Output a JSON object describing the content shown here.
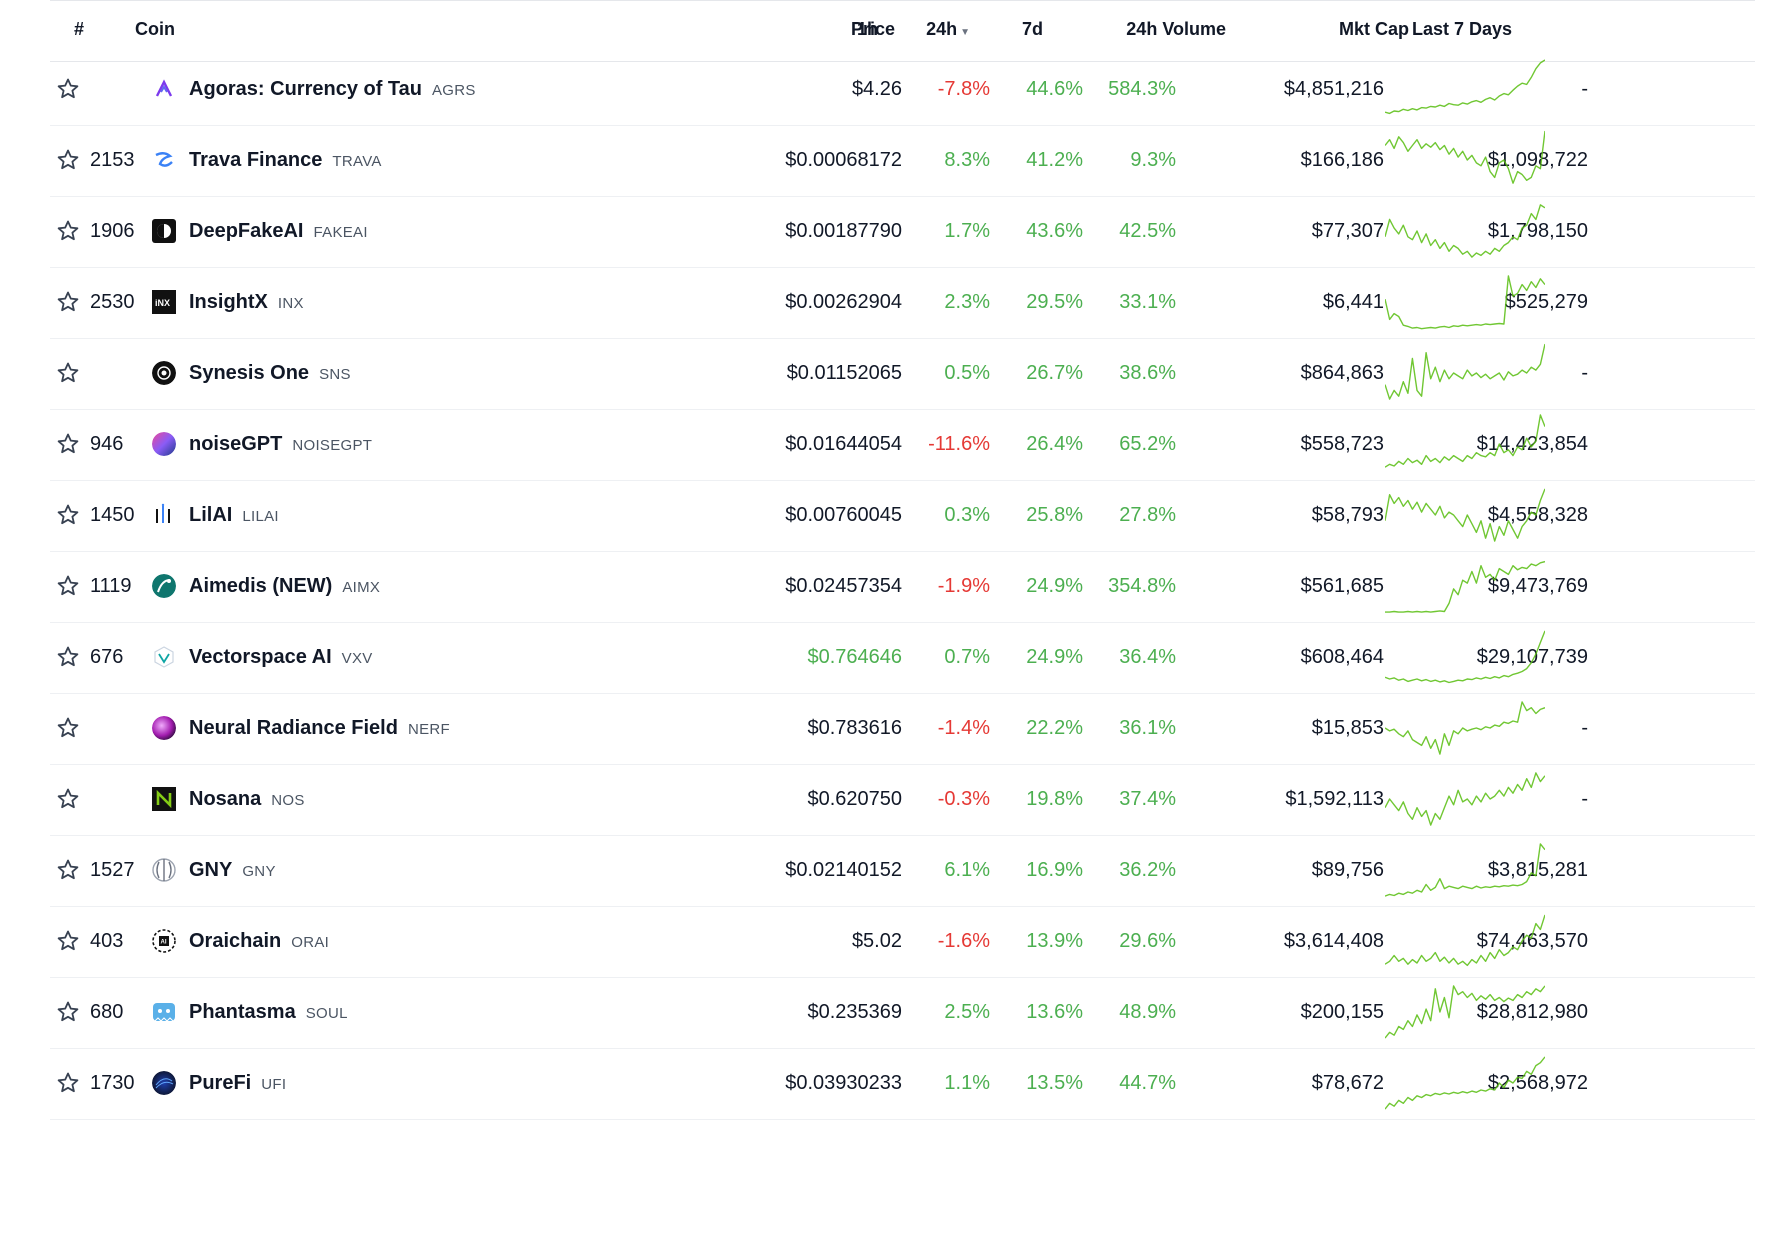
{
  "colors": {
    "positive": "#4caf50",
    "negative": "#e53935",
    "text": "#111827",
    "muted": "#4b5563"
  },
  "header": {
    "rank": "#",
    "coin": "Coin",
    "price": "Price",
    "h1": "1h",
    "h24": "24h",
    "d7": "7d",
    "volume": "24h Volume",
    "mcap": "Mkt Cap",
    "spark": "Last 7 Days"
  },
  "rows": [
    {
      "rank": "",
      "name": "Agoras: Currency of Tau",
      "symbol": "AGRS",
      "price": "$4.26",
      "price_color": "dark",
      "h1": "-7.8%",
      "h24": "44.6%",
      "d7": "584.3%",
      "volume": "$4,851,216",
      "mcap": "-",
      "logo": "agoras-logo",
      "spark": [
        0.1,
        0.08,
        0.12,
        0.11,
        0.15,
        0.13,
        0.16,
        0.14,
        0.18,
        0.17,
        0.2,
        0.19,
        0.22,
        0.2,
        0.25,
        0.23,
        0.22,
        0.26,
        0.24,
        0.28,
        0.3,
        0.27,
        0.32,
        0.35,
        0.31,
        0.38,
        0.42,
        0.4,
        0.48,
        0.55,
        0.6,
        0.58,
        0.7,
        0.85,
        0.95,
        1.0
      ]
    },
    {
      "rank": "2153",
      "name": "Trava Finance",
      "symbol": "TRAVA",
      "price": "$0.00068172",
      "price_color": "dark",
      "h1": "8.3%",
      "h24": "41.2%",
      "d7": "9.3%",
      "volume": "$166,186",
      "mcap": "$1,098,722",
      "logo": "trava-logo",
      "spark": [
        0.75,
        0.85,
        0.7,
        0.9,
        0.8,
        0.65,
        0.75,
        0.85,
        0.7,
        0.78,
        0.72,
        0.8,
        0.68,
        0.75,
        0.6,
        0.7,
        0.55,
        0.65,
        0.5,
        0.58,
        0.45,
        0.4,
        0.55,
        0.3,
        0.2,
        0.45,
        0.5,
        0.35,
        0.1,
        0.3,
        0.25,
        0.15,
        0.2,
        0.4,
        0.35,
        1.0
      ]
    },
    {
      "rank": "1906",
      "name": "DeepFakeAI",
      "symbol": "FAKEAI",
      "price": "$0.00187790",
      "price_color": "dark",
      "h1": "1.7%",
      "h24": "43.6%",
      "d7": "42.5%",
      "volume": "$77,307",
      "mcap": "$1,798,150",
      "logo": "deepfake-logo",
      "spark": [
        0.4,
        0.7,
        0.55,
        0.45,
        0.6,
        0.4,
        0.35,
        0.5,
        0.3,
        0.45,
        0.25,
        0.35,
        0.2,
        0.3,
        0.15,
        0.25,
        0.2,
        0.1,
        0.15,
        0.05,
        0.12,
        0.08,
        0.15,
        0.1,
        0.2,
        0.15,
        0.25,
        0.3,
        0.4,
        0.35,
        0.55,
        0.6,
        0.8,
        0.7,
        0.95,
        0.9
      ]
    },
    {
      "rank": "2530",
      "name": "InsightX",
      "symbol": "INX",
      "price": "$0.00262904",
      "price_color": "dark",
      "h1": "2.3%",
      "h24": "29.5%",
      "d7": "33.1%",
      "volume": "$6,441",
      "mcap": "$525,279",
      "logo": "insightx-logo",
      "spark": [
        0.55,
        0.2,
        0.3,
        0.25,
        0.1,
        0.08,
        0.05,
        0.06,
        0.04,
        0.05,
        0.06,
        0.05,
        0.07,
        0.08,
        0.06,
        0.09,
        0.08,
        0.1,
        0.09,
        0.1,
        0.11,
        0.1,
        0.12,
        0.11,
        0.12,
        0.13,
        0.12,
        0.95,
        0.6,
        0.65,
        0.8,
        0.7,
        0.85,
        0.75,
        0.9,
        0.8
      ]
    },
    {
      "rank": "",
      "name": "Synesis One",
      "symbol": "SNS",
      "price": "$0.01152065",
      "price_color": "dark",
      "h1": "0.5%",
      "h24": "26.7%",
      "d7": "38.6%",
      "volume": "$864,863",
      "mcap": "-",
      "logo": "synesis-logo",
      "spark": [
        0.3,
        0.05,
        0.2,
        0.1,
        0.35,
        0.15,
        0.75,
        0.2,
        0.1,
        0.85,
        0.4,
        0.6,
        0.35,
        0.55,
        0.4,
        0.5,
        0.45,
        0.4,
        0.55,
        0.45,
        0.5,
        0.42,
        0.48,
        0.4,
        0.45,
        0.5,
        0.38,
        0.52,
        0.45,
        0.48,
        0.55,
        0.5,
        0.6,
        0.55,
        0.65,
        1.0
      ]
    },
    {
      "rank": "946",
      "name": "noiseGPT",
      "symbol": "NOISEGPT",
      "price": "$0.01644054",
      "price_color": "dark",
      "h1": "-11.6%",
      "h24": "26.4%",
      "d7": "65.2%",
      "volume": "$558,723",
      "mcap": "$14,423,854",
      "logo": "noisegpt-logo",
      "spark": [
        0.1,
        0.15,
        0.12,
        0.2,
        0.15,
        0.25,
        0.18,
        0.22,
        0.15,
        0.3,
        0.2,
        0.25,
        0.18,
        0.28,
        0.22,
        0.3,
        0.25,
        0.2,
        0.3,
        0.25,
        0.35,
        0.3,
        0.28,
        0.35,
        0.3,
        0.5,
        0.35,
        0.4,
        0.3,
        0.45,
        0.4,
        0.6,
        0.45,
        0.55,
        1.0,
        0.8
      ]
    },
    {
      "rank": "1450",
      "name": "LilAI",
      "symbol": "LILAI",
      "price": "$0.00760045",
      "price_color": "dark",
      "h1": "0.3%",
      "h24": "25.8%",
      "d7": "27.8%",
      "volume": "$58,793",
      "mcap": "$4,558,328",
      "logo": "lilai-logo",
      "spark": [
        0.4,
        0.85,
        0.7,
        0.8,
        0.65,
        0.75,
        0.6,
        0.72,
        0.55,
        0.7,
        0.6,
        0.5,
        0.65,
        0.45,
        0.55,
        0.5,
        0.4,
        0.3,
        0.5,
        0.35,
        0.2,
        0.4,
        0.1,
        0.35,
        0.05,
        0.3,
        0.15,
        0.4,
        0.25,
        0.1,
        0.3,
        0.4,
        0.55,
        0.5,
        0.75,
        0.95
      ]
    },
    {
      "rank": "1119",
      "name": "Aimedis (NEW)",
      "symbol": "AIMX",
      "price": "$0.02457354",
      "price_color": "dark",
      "h1": "-1.9%",
      "h24": "24.9%",
      "d7": "354.8%",
      "volume": "$561,685",
      "mcap": "$9,473,769",
      "logo": "aimedis-logo",
      "spark": [
        0.05,
        0.05,
        0.06,
        0.05,
        0.05,
        0.06,
        0.05,
        0.06,
        0.05,
        0.06,
        0.05,
        0.06,
        0.07,
        0.06,
        0.2,
        0.45,
        0.35,
        0.6,
        0.55,
        0.75,
        0.55,
        0.85,
        0.65,
        0.7,
        0.6,
        0.8,
        0.75,
        0.7,
        0.85,
        0.78,
        0.82,
        0.8,
        0.88,
        0.85,
        0.9,
        0.92
      ]
    },
    {
      "rank": "676",
      "name": "Vectorspace AI",
      "symbol": "VXV",
      "price": "$0.764646",
      "price_color": "pos",
      "h1": "0.7%",
      "h24": "24.9%",
      "d7": "36.4%",
      "volume": "$608,464",
      "mcap": "$29,107,739",
      "logo": "vectorspace-logo",
      "spark": [
        0.15,
        0.12,
        0.14,
        0.1,
        0.12,
        0.08,
        0.1,
        0.12,
        0.09,
        0.11,
        0.08,
        0.1,
        0.07,
        0.09,
        0.06,
        0.08,
        0.1,
        0.09,
        0.12,
        0.11,
        0.14,
        0.12,
        0.15,
        0.13,
        0.16,
        0.14,
        0.18,
        0.16,
        0.2,
        0.22,
        0.25,
        0.3,
        0.4,
        0.55,
        0.75,
        0.95
      ]
    },
    {
      "rank": "",
      "name": "Neural Radiance Field",
      "symbol": "NERF",
      "price": "$0.783616",
      "price_color": "dark",
      "h1": "-1.4%",
      "h24": "22.2%",
      "d7": "36.1%",
      "volume": "$15,853",
      "mcap": "-",
      "logo": "nerf-logo",
      "spark": [
        0.5,
        0.45,
        0.48,
        0.4,
        0.35,
        0.45,
        0.3,
        0.25,
        0.2,
        0.35,
        0.15,
        0.3,
        0.05,
        0.4,
        0.2,
        0.45,
        0.4,
        0.5,
        0.45,
        0.48,
        0.5,
        0.47,
        0.52,
        0.5,
        0.55,
        0.53,
        0.6,
        0.58,
        0.62,
        0.6,
        0.95,
        0.8,
        0.85,
        0.75,
        0.82,
        0.85
      ]
    },
    {
      "rank": "",
      "name": "Nosana",
      "symbol": "NOS",
      "price": "$0.620750",
      "price_color": "dark",
      "h1": "-0.3%",
      "h24": "19.8%",
      "d7": "37.4%",
      "volume": "$1,592,113",
      "mcap": "-",
      "logo": "nosana-logo",
      "spark": [
        0.35,
        0.5,
        0.4,
        0.3,
        0.45,
        0.25,
        0.15,
        0.35,
        0.2,
        0.3,
        0.05,
        0.25,
        0.15,
        0.35,
        0.55,
        0.4,
        0.65,
        0.45,
        0.5,
        0.4,
        0.55,
        0.45,
        0.6,
        0.5,
        0.55,
        0.65,
        0.55,
        0.7,
        0.6,
        0.75,
        0.65,
        0.85,
        0.7,
        0.95,
        0.8,
        0.9
      ]
    },
    {
      "rank": "1527",
      "name": "GNY",
      "symbol": "GNY",
      "price": "$0.02140152",
      "price_color": "dark",
      "h1": "6.1%",
      "h24": "16.9%",
      "d7": "36.2%",
      "volume": "$89,756",
      "mcap": "$3,815,281",
      "logo": "gny-logo",
      "spark": [
        0.05,
        0.08,
        0.06,
        0.1,
        0.08,
        0.12,
        0.1,
        0.15,
        0.12,
        0.25,
        0.15,
        0.2,
        0.35,
        0.18,
        0.22,
        0.2,
        0.18,
        0.22,
        0.2,
        0.18,
        0.22,
        0.19,
        0.21,
        0.2,
        0.22,
        0.21,
        0.23,
        0.22,
        0.24,
        0.23,
        0.25,
        0.3,
        0.45,
        0.4,
        0.95,
        0.85
      ]
    },
    {
      "rank": "403",
      "name": "Oraichain",
      "symbol": "ORAI",
      "price": "$5.02",
      "price_color": "dark",
      "h1": "-1.6%",
      "h24": "13.9%",
      "d7": "29.6%",
      "volume": "$3,614,408",
      "mcap": "$74,463,570",
      "logo": "oraichain-logo",
      "spark": [
        0.1,
        0.15,
        0.25,
        0.15,
        0.2,
        0.1,
        0.18,
        0.12,
        0.25,
        0.15,
        0.2,
        0.3,
        0.15,
        0.22,
        0.12,
        0.2,
        0.1,
        0.15,
        0.08,
        0.18,
        0.12,
        0.25,
        0.15,
        0.3,
        0.2,
        0.35,
        0.25,
        0.3,
        0.4,
        0.35,
        0.5,
        0.6,
        0.55,
        0.8,
        0.7,
        0.95
      ]
    },
    {
      "rank": "680",
      "name": "Phantasma",
      "symbol": "SOUL",
      "price": "$0.235369",
      "price_color": "dark",
      "h1": "2.5%",
      "h24": "13.6%",
      "d7": "48.9%",
      "volume": "$200,155",
      "mcap": "$28,812,980",
      "logo": "phantasma-logo",
      "spark": [
        0.05,
        0.15,
        0.1,
        0.25,
        0.2,
        0.35,
        0.25,
        0.45,
        0.3,
        0.55,
        0.35,
        0.9,
        0.5,
        0.75,
        0.4,
        0.95,
        0.8,
        0.85,
        0.75,
        0.82,
        0.7,
        0.78,
        0.72,
        0.8,
        0.7,
        0.75,
        0.68,
        0.74,
        0.7,
        0.8,
        0.75,
        0.85,
        0.8,
        0.9,
        0.85,
        0.95
      ]
    },
    {
      "rank": "1730",
      "name": "PureFi",
      "symbol": "UFI",
      "price": "$0.03930233",
      "price_color": "dark",
      "h1": "1.1%",
      "h24": "13.5%",
      "d7": "44.7%",
      "volume": "$78,672",
      "mcap": "$2,568,972",
      "logo": "purefi-logo",
      "spark": [
        0.05,
        0.15,
        0.1,
        0.2,
        0.15,
        0.25,
        0.2,
        0.28,
        0.25,
        0.3,
        0.28,
        0.32,
        0.3,
        0.33,
        0.31,
        0.34,
        0.32,
        0.35,
        0.33,
        0.36,
        0.34,
        0.38,
        0.36,
        0.4,
        0.38,
        0.5,
        0.42,
        0.55,
        0.5,
        0.6,
        0.58,
        0.7,
        0.65,
        0.8,
        0.85,
        0.95
      ]
    }
  ]
}
